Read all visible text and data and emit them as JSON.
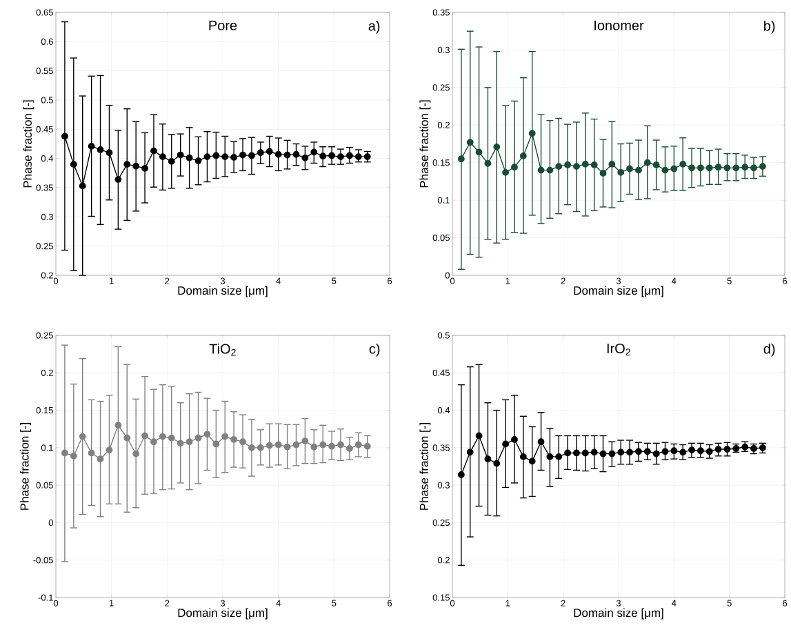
{
  "chart_data": [
    {
      "type": "line",
      "color": "#000000",
      "marker": "circle",
      "line_style": "solid",
      "grid": true,
      "xlabel": "Domain size [μm]",
      "ylabel": "Phase fraction [-]",
      "annotations": [
        "Pore",
        "a)"
      ],
      "xlim": [
        0,
        6
      ],
      "xticks": [
        0,
        1,
        2,
        3,
        4,
        5,
        6
      ],
      "ylim": [
        0.2,
        0.65
      ],
      "yticks": [
        0.2,
        0.25,
        0.3,
        0.35,
        0.4,
        0.45,
        0.5,
        0.55,
        0.6,
        0.65
      ],
      "x": [
        0.16,
        0.32,
        0.48,
        0.64,
        0.8,
        0.96,
        1.12,
        1.28,
        1.44,
        1.6,
        1.76,
        1.92,
        2.08,
        2.24,
        2.4,
        2.56,
        2.72,
        2.88,
        3.04,
        3.2,
        3.36,
        3.52,
        3.68,
        3.84,
        4.0,
        4.16,
        4.32,
        4.48,
        4.64,
        4.8,
        4.96,
        5.12,
        5.28,
        5.44,
        5.6
      ],
      "values": [
        0.438,
        0.39,
        0.353,
        0.421,
        0.415,
        0.41,
        0.364,
        0.39,
        0.387,
        0.383,
        0.413,
        0.403,
        0.395,
        0.406,
        0.401,
        0.396,
        0.403,
        0.405,
        0.403,
        0.402,
        0.406,
        0.405,
        0.41,
        0.412,
        0.407,
        0.406,
        0.407,
        0.401,
        0.411,
        0.404,
        0.405,
        0.403,
        0.405,
        0.403,
        0.403
      ],
      "errors": [
        [
          0.243,
          0.634
        ],
        [
          0.208,
          0.572
        ],
        [
          0.2,
          0.507
        ],
        [
          0.301,
          0.541
        ],
        [
          0.287,
          0.542
        ],
        [
          0.329,
          0.491
        ],
        [
          0.279,
          0.448
        ],
        [
          0.294,
          0.485
        ],
        [
          0.31,
          0.463
        ],
        [
          0.324,
          0.444
        ],
        [
          0.351,
          0.475
        ],
        [
          0.346,
          0.459
        ],
        [
          0.349,
          0.441
        ],
        [
          0.37,
          0.442
        ],
        [
          0.349,
          0.453
        ],
        [
          0.355,
          0.437
        ],
        [
          0.36,
          0.446
        ],
        [
          0.366,
          0.445
        ],
        [
          0.369,
          0.438
        ],
        [
          0.376,
          0.429
        ],
        [
          0.379,
          0.434
        ],
        [
          0.373,
          0.436
        ],
        [
          0.391,
          0.428
        ],
        [
          0.386,
          0.438
        ],
        [
          0.379,
          0.435
        ],
        [
          0.382,
          0.431
        ],
        [
          0.388,
          0.425
        ],
        [
          0.381,
          0.421
        ],
        [
          0.392,
          0.428
        ],
        [
          0.386,
          0.42
        ],
        [
          0.39,
          0.42
        ],
        [
          0.39,
          0.416
        ],
        [
          0.392,
          0.419
        ],
        [
          0.394,
          0.415
        ],
        [
          0.394,
          0.412
        ]
      ]
    },
    {
      "type": "line",
      "color": "#184c38",
      "marker": "circle",
      "line_style": "solid",
      "grid": true,
      "xlabel": "Domain size [μm]",
      "ylabel": "Phase fraction [-]",
      "annotations": [
        "Ionomer",
        "b)"
      ],
      "xlim": [
        0,
        6
      ],
      "xticks": [
        0,
        1,
        2,
        3,
        4,
        5,
        6
      ],
      "ylim": [
        0,
        0.35
      ],
      "yticks": [
        0,
        0.05,
        0.1,
        0.15,
        0.2,
        0.25,
        0.3,
        0.35
      ],
      "x": [
        0.16,
        0.32,
        0.48,
        0.64,
        0.8,
        0.96,
        1.12,
        1.28,
        1.44,
        1.6,
        1.76,
        1.92,
        2.08,
        2.24,
        2.4,
        2.56,
        2.72,
        2.88,
        3.04,
        3.2,
        3.36,
        3.52,
        3.68,
        3.84,
        4.0,
        4.16,
        4.32,
        4.48,
        4.64,
        4.8,
        4.96,
        5.12,
        5.28,
        5.44,
        5.6
      ],
      "values": [
        0.155,
        0.177,
        0.164,
        0.149,
        0.171,
        0.137,
        0.144,
        0.159,
        0.189,
        0.14,
        0.14,
        0.145,
        0.147,
        0.145,
        0.148,
        0.147,
        0.136,
        0.148,
        0.137,
        0.142,
        0.14,
        0.15,
        0.147,
        0.14,
        0.142,
        0.148,
        0.143,
        0.143,
        0.143,
        0.144,
        0.143,
        0.143,
        0.144,
        0.143,
        0.145
      ],
      "errors": [
        [
          0.008,
          0.301
        ],
        [
          0.028,
          0.325
        ],
        [
          0.024,
          0.304
        ],
        [
          0.048,
          0.25
        ],
        [
          0.043,
          0.298
        ],
        [
          0.048,
          0.226
        ],
        [
          0.057,
          0.232
        ],
        [
          0.056,
          0.263
        ],
        [
          0.08,
          0.298
        ],
        [
          0.069,
          0.214
        ],
        [
          0.076,
          0.206
        ],
        [
          0.082,
          0.209
        ],
        [
          0.094,
          0.201
        ],
        [
          0.085,
          0.204
        ],
        [
          0.079,
          0.216
        ],
        [
          0.086,
          0.208
        ],
        [
          0.091,
          0.181
        ],
        [
          0.09,
          0.205
        ],
        [
          0.098,
          0.175
        ],
        [
          0.108,
          0.176
        ],
        [
          0.101,
          0.18
        ],
        [
          0.102,
          0.199
        ],
        [
          0.114,
          0.18
        ],
        [
          0.111,
          0.171
        ],
        [
          0.113,
          0.172
        ],
        [
          0.113,
          0.183
        ],
        [
          0.117,
          0.169
        ],
        [
          0.119,
          0.169
        ],
        [
          0.121,
          0.166
        ],
        [
          0.121,
          0.168
        ],
        [
          0.126,
          0.162
        ],
        [
          0.126,
          0.162
        ],
        [
          0.129,
          0.16
        ],
        [
          0.129,
          0.157
        ],
        [
          0.132,
          0.158
        ]
      ]
    },
    {
      "type": "line",
      "color": "#808080",
      "marker": "circle",
      "line_style": "solid",
      "grid": true,
      "xlabel": "Domain size [μm]",
      "ylabel": "Phase fraction [-]",
      "annotations": [
        "TiO$_{2}$",
        "c)"
      ],
      "xlim": [
        0,
        6
      ],
      "xticks": [
        0,
        1,
        2,
        3,
        4,
        5,
        6
      ],
      "ylim": [
        -0.1,
        0.25
      ],
      "yticks": [
        -0.1,
        -0.05,
        0,
        0.05,
        0.1,
        0.15,
        0.2,
        0.25
      ],
      "x": [
        0.16,
        0.32,
        0.48,
        0.64,
        0.8,
        0.96,
        1.12,
        1.28,
        1.44,
        1.6,
        1.76,
        1.92,
        2.08,
        2.24,
        2.4,
        2.56,
        2.72,
        2.88,
        3.04,
        3.2,
        3.36,
        3.52,
        3.68,
        3.84,
        4.0,
        4.16,
        4.32,
        4.48,
        4.64,
        4.8,
        4.96,
        5.12,
        5.28,
        5.44,
        5.6
      ],
      "values": [
        0.093,
        0.089,
        0.115,
        0.093,
        0.085,
        0.097,
        0.13,
        0.113,
        0.092,
        0.116,
        0.108,
        0.115,
        0.113,
        0.106,
        0.108,
        0.113,
        0.118,
        0.105,
        0.115,
        0.111,
        0.108,
        0.1,
        0.1,
        0.103,
        0.104,
        0.101,
        0.104,
        0.109,
        0.101,
        0.104,
        0.102,
        0.104,
        0.099,
        0.104,
        0.102
      ],
      "errors": [
        [
          -0.052,
          0.237
        ],
        [
          -0.007,
          0.185
        ],
        [
          0.011,
          0.219
        ],
        [
          0.023,
          0.164
        ],
        [
          0.008,
          0.162
        ],
        [
          0.025,
          0.17
        ],
        [
          0.025,
          0.235
        ],
        [
          0.014,
          0.211
        ],
        [
          0.02,
          0.165
        ],
        [
          0.038,
          0.195
        ],
        [
          0.039,
          0.178
        ],
        [
          0.044,
          0.184
        ],
        [
          0.045,
          0.182
        ],
        [
          0.053,
          0.16
        ],
        [
          0.044,
          0.172
        ],
        [
          0.052,
          0.174
        ],
        [
          0.07,
          0.166
        ],
        [
          0.06,
          0.15
        ],
        [
          0.067,
          0.162
        ],
        [
          0.074,
          0.148
        ],
        [
          0.073,
          0.144
        ],
        [
          0.062,
          0.138
        ],
        [
          0.077,
          0.124
        ],
        [
          0.074,
          0.132
        ],
        [
          0.077,
          0.132
        ],
        [
          0.072,
          0.131
        ],
        [
          0.076,
          0.131
        ],
        [
          0.079,
          0.139
        ],
        [
          0.079,
          0.124
        ],
        [
          0.08,
          0.13
        ],
        [
          0.084,
          0.122
        ],
        [
          0.083,
          0.125
        ],
        [
          0.084,
          0.114
        ],
        [
          0.088,
          0.12
        ],
        [
          0.087,
          0.116
        ]
      ]
    },
    {
      "type": "line",
      "color": "#000000",
      "marker": "circle",
      "line_style": "solid",
      "grid": true,
      "xlabel": "Domain size [μm]",
      "ylabel": "Phase fraction [-]",
      "annotations": [
        "IrO$_{2}$",
        "d)"
      ],
      "xlim": [
        0,
        6
      ],
      "xticks": [
        0,
        1,
        2,
        3,
        4,
        5,
        6
      ],
      "ylim": [
        0.15,
        0.5
      ],
      "yticks": [
        0.15,
        0.2,
        0.25,
        0.3,
        0.35,
        0.4,
        0.45,
        0.5
      ],
      "x": [
        0.16,
        0.32,
        0.48,
        0.64,
        0.8,
        0.96,
        1.12,
        1.28,
        1.44,
        1.6,
        1.76,
        1.92,
        2.08,
        2.24,
        2.4,
        2.56,
        2.72,
        2.88,
        3.04,
        3.2,
        3.36,
        3.52,
        3.68,
        3.84,
        4.0,
        4.16,
        4.32,
        4.48,
        4.64,
        4.8,
        4.96,
        5.12,
        5.28,
        5.44,
        5.6
      ],
      "values": [
        0.314,
        0.344,
        0.366,
        0.335,
        0.329,
        0.355,
        0.361,
        0.338,
        0.332,
        0.358,
        0.338,
        0.338,
        0.343,
        0.343,
        0.343,
        0.344,
        0.342,
        0.342,
        0.344,
        0.344,
        0.345,
        0.345,
        0.342,
        0.345,
        0.346,
        0.344,
        0.347,
        0.346,
        0.345,
        0.348,
        0.348,
        0.349,
        0.351,
        0.349,
        0.35
      ],
      "errors": [
        [
          0.193,
          0.434
        ],
        [
          0.231,
          0.458
        ],
        [
          0.272,
          0.461
        ],
        [
          0.26,
          0.41
        ],
        [
          0.259,
          0.4
        ],
        [
          0.297,
          0.414
        ],
        [
          0.303,
          0.42
        ],
        [
          0.283,
          0.392
        ],
        [
          0.285,
          0.378
        ],
        [
          0.32,
          0.397
        ],
        [
          0.298,
          0.376
        ],
        [
          0.309,
          0.366
        ],
        [
          0.321,
          0.366
        ],
        [
          0.32,
          0.366
        ],
        [
          0.319,
          0.366
        ],
        [
          0.322,
          0.366
        ],
        [
          0.318,
          0.366
        ],
        [
          0.325,
          0.358
        ],
        [
          0.328,
          0.36
        ],
        [
          0.328,
          0.36
        ],
        [
          0.332,
          0.357
        ],
        [
          0.334,
          0.356
        ],
        [
          0.328,
          0.356
        ],
        [
          0.334,
          0.357
        ],
        [
          0.335,
          0.355
        ],
        [
          0.334,
          0.354
        ],
        [
          0.337,
          0.356
        ],
        [
          0.337,
          0.356
        ],
        [
          0.336,
          0.354
        ],
        [
          0.339,
          0.356
        ],
        [
          0.339,
          0.357
        ],
        [
          0.344,
          0.355
        ],
        [
          0.345,
          0.358
        ],
        [
          0.342,
          0.355
        ],
        [
          0.343,
          0.356
        ]
      ]
    }
  ]
}
